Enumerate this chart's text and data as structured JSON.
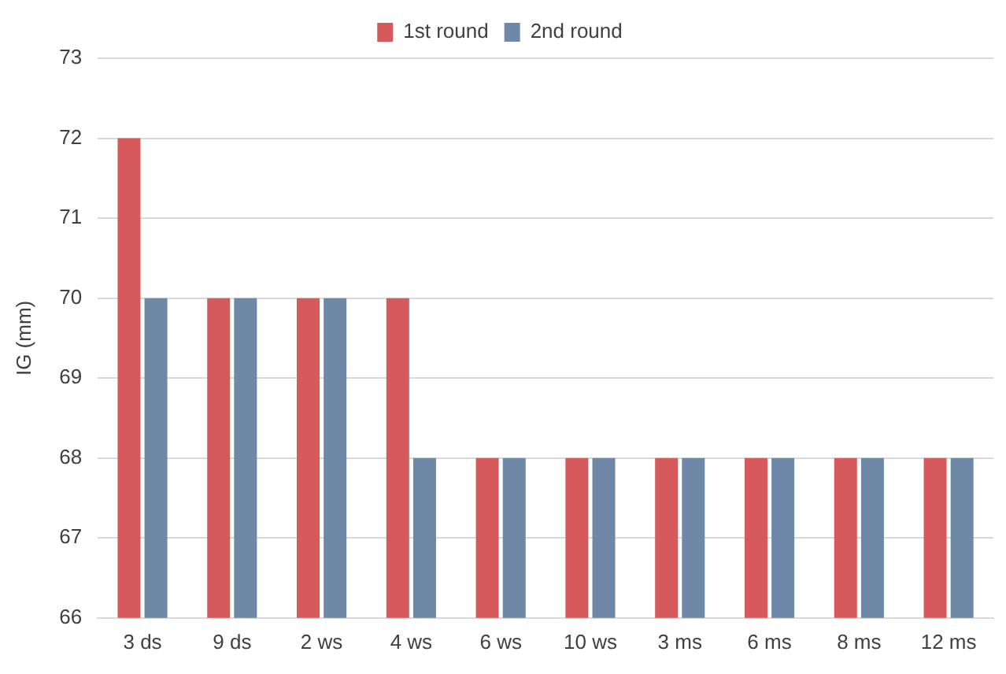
{
  "chart_data": {
    "type": "bar",
    "ylabel": "IG (mm)",
    "categories": [
      "3 ds",
      "9 ds",
      "2 ws",
      "4 ws",
      "6 ws",
      "10 ws",
      "3 ms",
      "6 ms",
      "8 ms",
      "12 ms"
    ],
    "series": [
      {
        "name": "1st round",
        "color": "#d65a5c",
        "values": [
          72,
          70,
          70,
          70,
          68,
          68,
          68,
          68,
          68,
          68
        ]
      },
      {
        "name": "2nd round",
        "color": "#7088a8",
        "values": [
          70,
          70,
          70,
          68,
          68,
          68,
          68,
          68,
          68,
          68
        ]
      }
    ],
    "ylim": [
      66,
      73
    ],
    "yticks": [
      66,
      67,
      68,
      69,
      70,
      71,
      72,
      73
    ],
    "grid": "y",
    "legend": "top"
  }
}
